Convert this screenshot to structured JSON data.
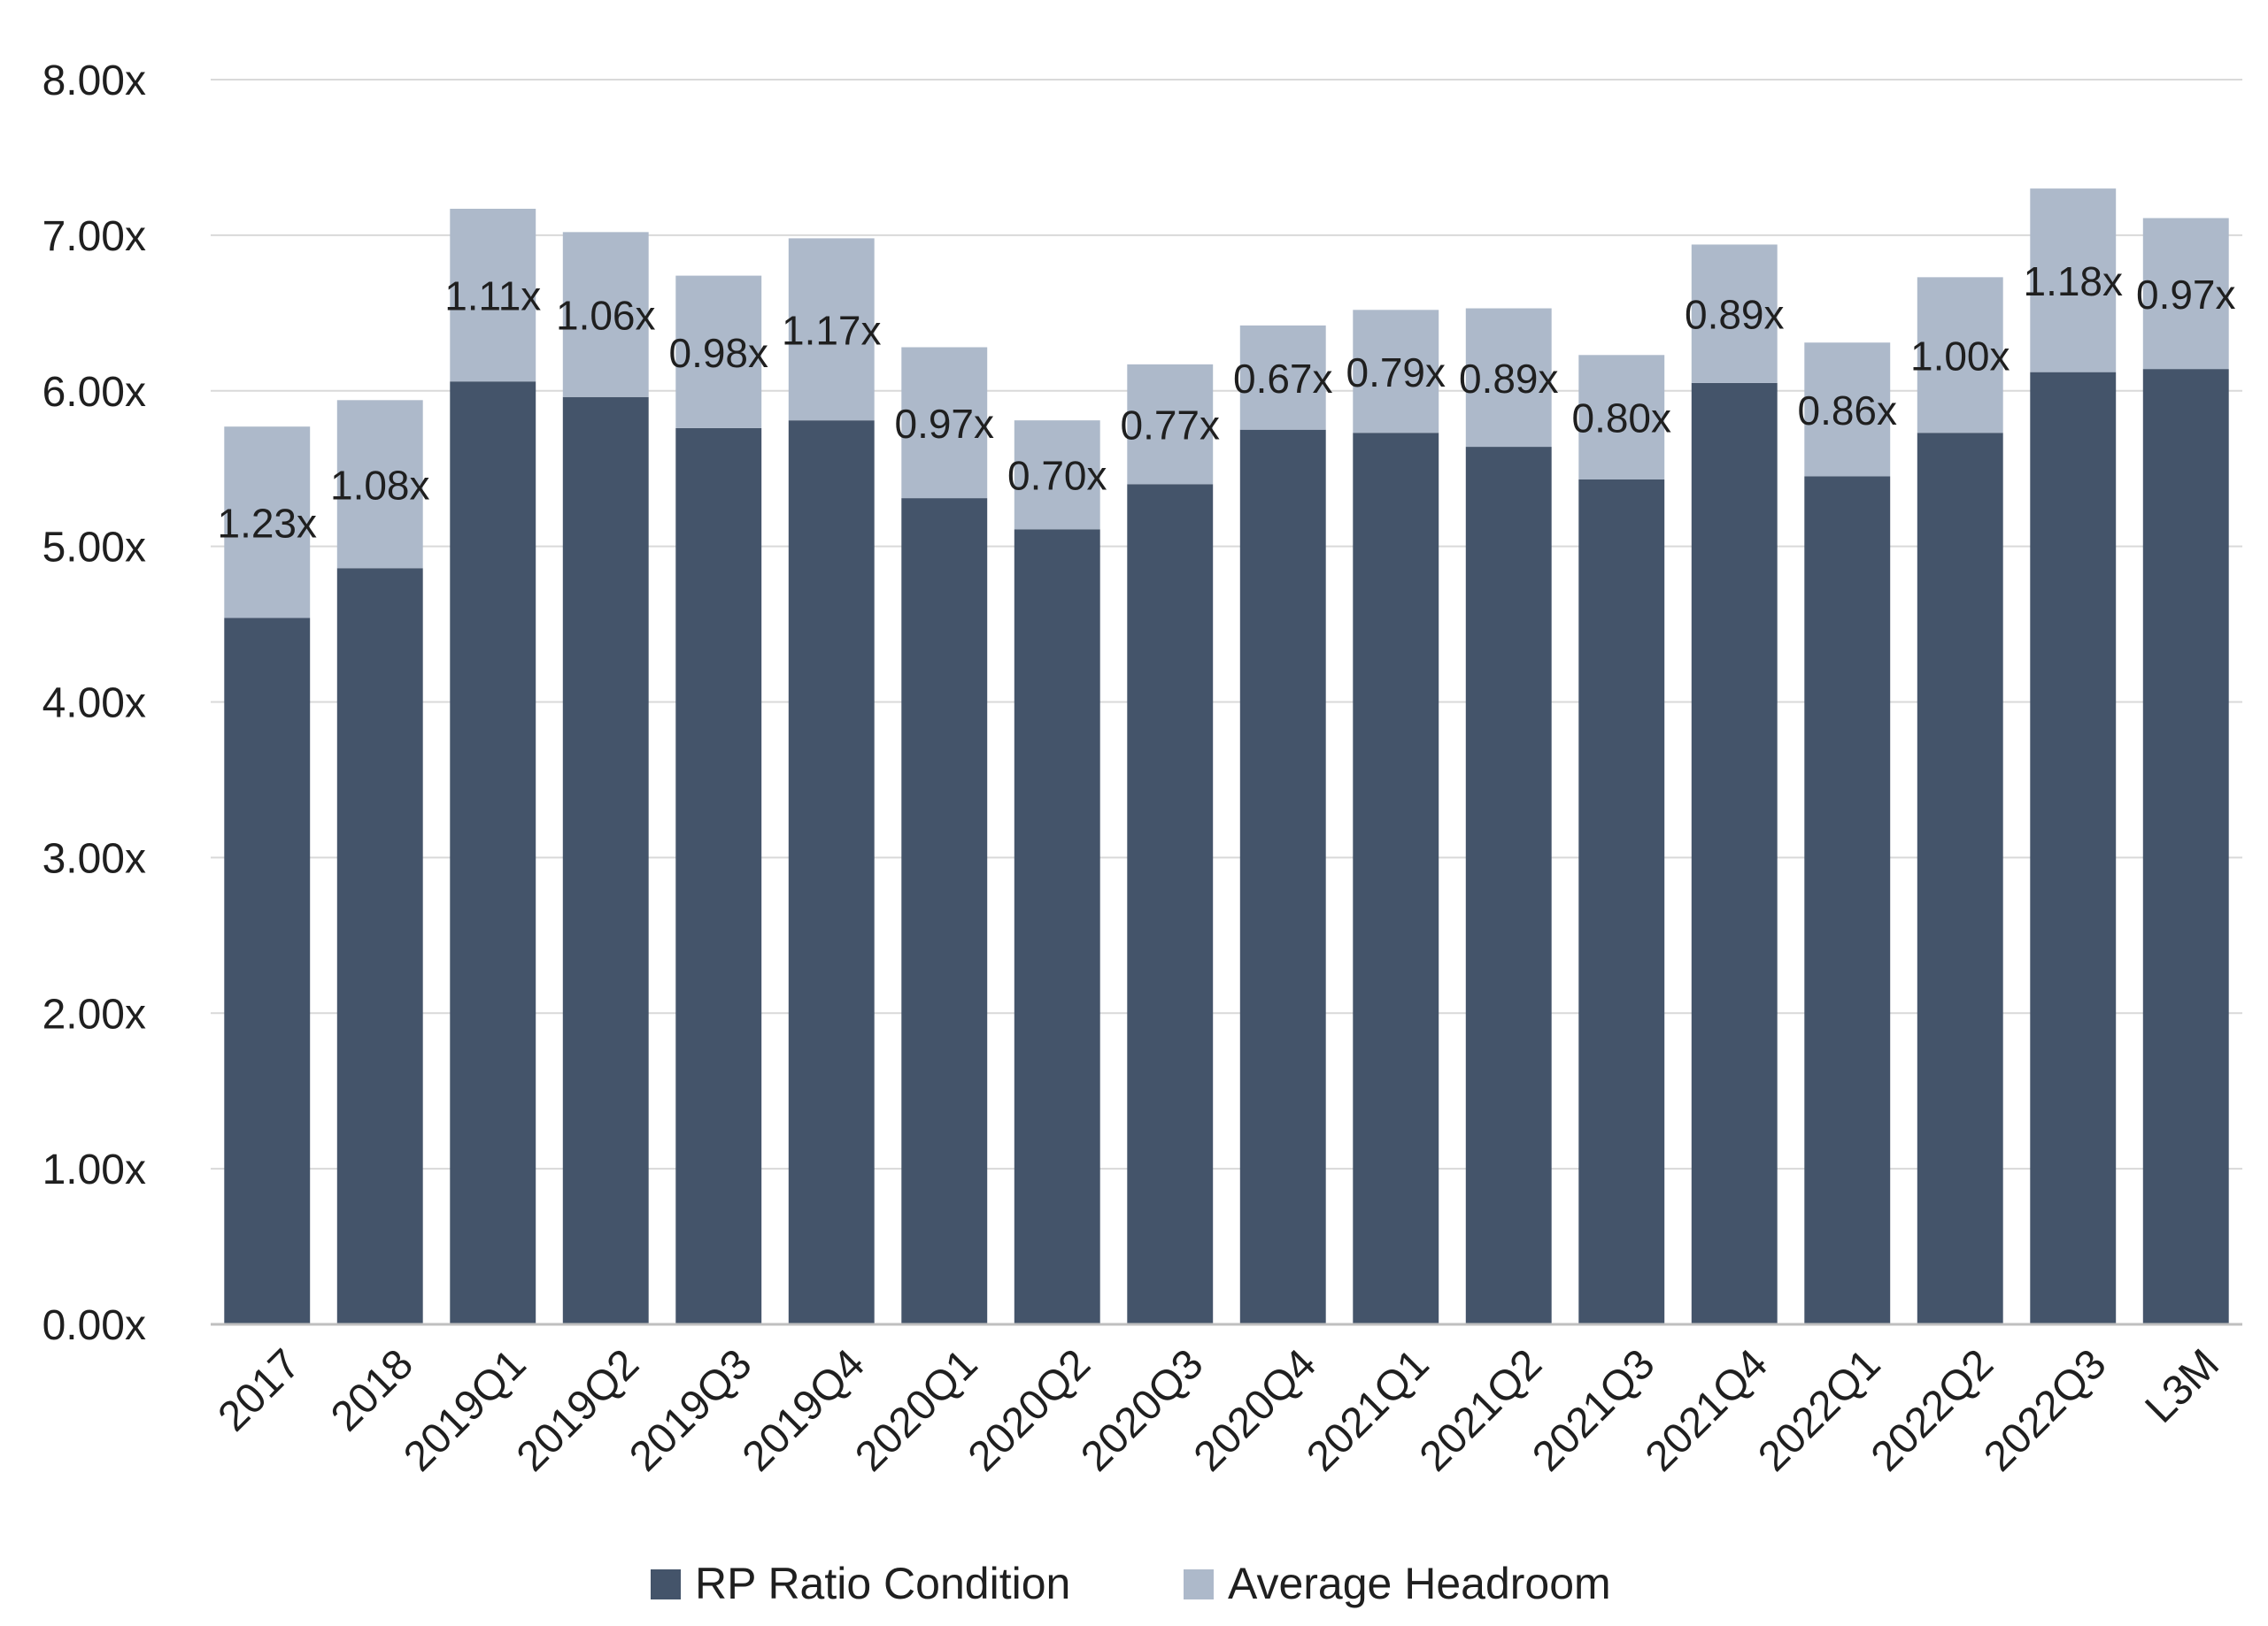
{
  "chart_data": {
    "type": "bar",
    "stacked": true,
    "categories": [
      "2017",
      "2018",
      "2019Q1",
      "2019Q2",
      "2019Q3",
      "2019Q4",
      "2020Q1",
      "2020Q2",
      "2020Q3",
      "2020Q4",
      "2021Q1",
      "2021Q2",
      "2021Q3",
      "2021Q4",
      "2022Q1",
      "2022Q2",
      "2022Q3",
      "L3M"
    ],
    "series": [
      {
        "name": "RP Ratio Condition",
        "color": "#44546a",
        "values": [
          4.54,
          4.86,
          6.06,
          5.96,
          5.76,
          5.81,
          5.31,
          5.11,
          5.4,
          5.75,
          5.73,
          5.64,
          5.43,
          6.05,
          5.45,
          5.73,
          6.12,
          6.14
        ]
      },
      {
        "name": "Average Headroom",
        "color": "#adb9ca",
        "values": [
          1.23,
          1.08,
          1.11,
          1.06,
          0.98,
          1.17,
          0.97,
          0.7,
          0.77,
          0.67,
          0.79,
          0.89,
          0.8,
          0.89,
          0.86,
          1.0,
          1.18,
          0.97
        ]
      }
    ],
    "data_labels": [
      "1.23x",
      "1.08x",
      "1.11x",
      "1.06x",
      "0.98x",
      "1.17x",
      "0.97x",
      "0.70x",
      "0.77x",
      "0.67x",
      "0.79x",
      "0.89x",
      "0.80x",
      "0.89x",
      "0.86x",
      "1.00x",
      "1.18x",
      "0.97x"
    ],
    "y_ticks": [
      "0.00x",
      "1.00x",
      "2.00x",
      "3.00x",
      "4.00x",
      "5.00x",
      "6.00x",
      "7.00x",
      "8.00x"
    ],
    "ylim": [
      0,
      8
    ],
    "grid": true,
    "legend_position": "bottom",
    "title": "",
    "xlabel": "",
    "ylabel": "",
    "colors": {
      "grid": "#d9d9d9",
      "axis": "#bfbfbf",
      "tick_text": "#1f1f1f",
      "label_text": "#1f1f1f"
    }
  }
}
